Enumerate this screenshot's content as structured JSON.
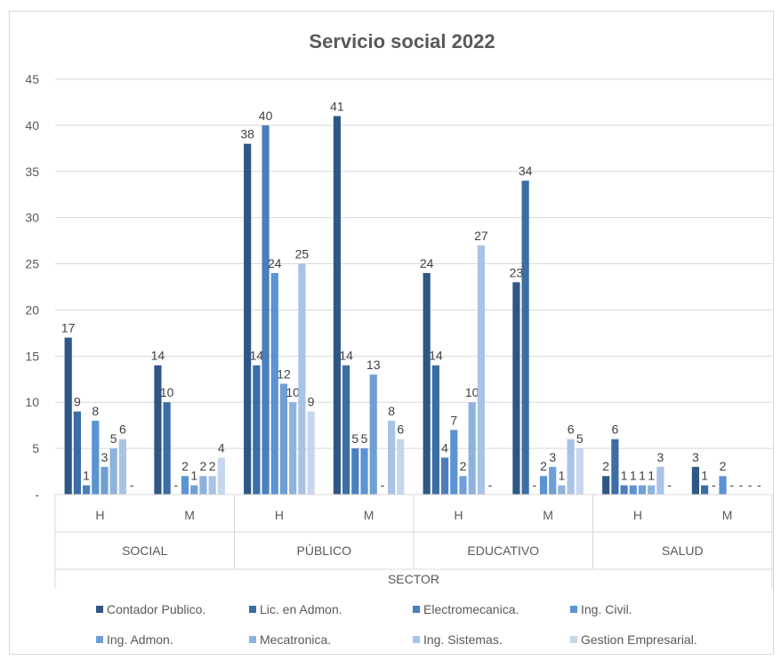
{
  "chart_data": {
    "type": "bar",
    "title": "Servicio social 2022",
    "xlabel": "SECTOR",
    "ylabel": "",
    "ylim": [
      0,
      45
    ],
    "yticks": [
      "-",
      "5",
      "10",
      "15",
      "20",
      "25",
      "30",
      "35",
      "40",
      "45"
    ],
    "groups": [
      {
        "label": "SOCIAL",
        "categories": [
          "H",
          "M"
        ]
      },
      {
        "label": "PÚBLICO",
        "categories": [
          "H",
          "M"
        ]
      },
      {
        "label": "EDUCATIVO",
        "categories": [
          "H",
          "M"
        ]
      },
      {
        "label": "SALUD",
        "categories": [
          "H",
          "M"
        ]
      }
    ],
    "categories": [
      "SOCIAL H",
      "SOCIAL M",
      "PÚBLICO H",
      "PÚBLICO M",
      "EDUCATIVO H",
      "EDUCATIVO M",
      "SALUD H",
      "SALUD M"
    ],
    "series": [
      {
        "name": "Contador Publico.",
        "color": "#2f5785",
        "values": [
          17,
          14,
          38,
          41,
          24,
          23,
          2,
          3
        ]
      },
      {
        "name": "Lic. en Admon.",
        "color": "#3b6ea5",
        "values": [
          9,
          10,
          14,
          14,
          14,
          34,
          6,
          1
        ]
      },
      {
        "name": "Electromecanica.",
        "color": "#4a7fbf",
        "values": [
          1,
          0,
          40,
          5,
          4,
          0,
          1,
          0
        ]
      },
      {
        "name": "Ing. Civil.",
        "color": "#5b93d3",
        "values": [
          8,
          2,
          24,
          5,
          7,
          2,
          1,
          2
        ]
      },
      {
        "name": "Ing. Admon.",
        "color": "#6f9fd6",
        "values": [
          3,
          1,
          12,
          13,
          2,
          3,
          1,
          0
        ]
      },
      {
        "name": "Mecatronica.",
        "color": "#8eb2df",
        "values": [
          5,
          2,
          10,
          0,
          10,
          1,
          1,
          0
        ]
      },
      {
        "name": "Ing. Sistemas.",
        "color": "#a9c3e6",
        "values": [
          6,
          2,
          25,
          8,
          27,
          6,
          3,
          0
        ]
      },
      {
        "name": "Gestion Empresarial.",
        "color": "#c5d6ee",
        "values": [
          0,
          4,
          9,
          6,
          0,
          5,
          0,
          0
        ]
      }
    ],
    "zero_label": "-",
    "grid": true,
    "legend_position": "bottom"
  }
}
